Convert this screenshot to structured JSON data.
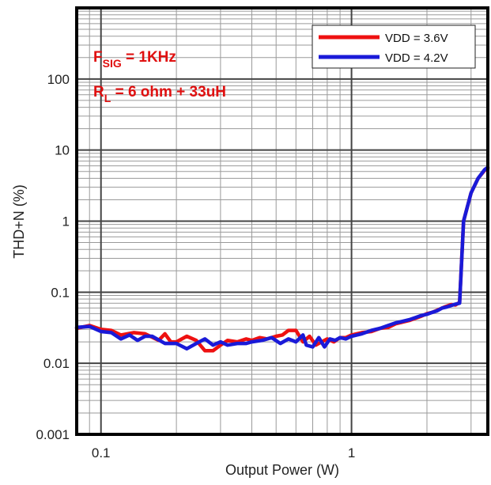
{
  "chart_data": {
    "type": "line",
    "title": "",
    "xlabel": "Output Power (W)",
    "ylabel": "THD+N (%)",
    "x_scale": "log",
    "y_scale": "log",
    "xlim": [
      0.08,
      3.5
    ],
    "ylim": [
      0.001,
      1000
    ],
    "x_tick_labels": [
      "0.1",
      "1"
    ],
    "y_tick_labels": [
      "0.001",
      "0.01",
      "0.1",
      "1",
      "10",
      "100"
    ],
    "grid": true,
    "legend_position": "top-right",
    "annotations": [
      {
        "main": "F",
        "sub": "SIG",
        "rest": " = 1KHz"
      },
      {
        "main": "R",
        "sub": "L",
        "rest": " = 6 ohm + 33uH"
      }
    ],
    "series": [
      {
        "name": "VDD = 3.6V",
        "color": "#ee1111",
        "x": [
          0.08,
          0.09,
          0.1,
          0.11,
          0.12,
          0.135,
          0.15,
          0.17,
          0.18,
          0.19,
          0.2,
          0.22,
          0.24,
          0.26,
          0.28,
          0.3,
          0.32,
          0.35,
          0.38,
          0.4,
          0.43,
          0.46,
          0.5,
          0.53,
          0.56,
          0.6,
          0.64,
          0.68,
          0.72,
          0.76,
          0.8,
          0.85,
          0.9,
          0.95,
          1.0,
          1.1,
          1.2,
          1.3,
          1.4,
          1.5,
          1.6,
          1.7,
          1.8,
          1.9,
          2.0,
          2.1,
          2.2,
          2.35,
          2.5,
          2.6,
          2.7,
          2.8,
          3.0,
          3.2,
          3.4,
          3.5
        ],
        "y": [
          0.031,
          0.034,
          0.03,
          0.029,
          0.025,
          0.027,
          0.026,
          0.021,
          0.026,
          0.02,
          0.02,
          0.024,
          0.021,
          0.015,
          0.015,
          0.018,
          0.021,
          0.02,
          0.022,
          0.021,
          0.023,
          0.022,
          0.024,
          0.025,
          0.029,
          0.029,
          0.02,
          0.024,
          0.018,
          0.02,
          0.022,
          0.02,
          0.023,
          0.023,
          0.025,
          0.027,
          0.028,
          0.031,
          0.032,
          0.036,
          0.038,
          0.04,
          0.043,
          0.046,
          0.05,
          0.052,
          0.056,
          0.062,
          0.067,
          0.066,
          0.072,
          1.0,
          2.5,
          4.0,
          5.2,
          5.5
        ]
      },
      {
        "name": "VDD = 4.2V",
        "color": "#1a1ad8",
        "x": [
          0.08,
          0.09,
          0.1,
          0.11,
          0.12,
          0.13,
          0.14,
          0.15,
          0.16,
          0.18,
          0.2,
          0.22,
          0.24,
          0.26,
          0.28,
          0.3,
          0.32,
          0.35,
          0.38,
          0.4,
          0.44,
          0.48,
          0.52,
          0.56,
          0.6,
          0.64,
          0.66,
          0.7,
          0.74,
          0.78,
          0.82,
          0.86,
          0.9,
          0.95,
          1.0,
          1.05,
          1.1,
          1.2,
          1.3,
          1.4,
          1.5,
          1.6,
          1.7,
          1.8,
          1.9,
          2.0,
          2.1,
          2.2,
          2.3,
          2.4,
          2.5,
          2.6,
          2.7,
          2.8,
          3.0,
          3.2,
          3.4,
          3.5
        ],
        "y": [
          0.032,
          0.033,
          0.028,
          0.027,
          0.022,
          0.025,
          0.021,
          0.024,
          0.024,
          0.019,
          0.019,
          0.016,
          0.019,
          0.022,
          0.018,
          0.02,
          0.018,
          0.019,
          0.019,
          0.02,
          0.021,
          0.023,
          0.019,
          0.022,
          0.02,
          0.025,
          0.018,
          0.017,
          0.023,
          0.017,
          0.022,
          0.021,
          0.023,
          0.022,
          0.024,
          0.025,
          0.026,
          0.029,
          0.031,
          0.034,
          0.037,
          0.039,
          0.041,
          0.044,
          0.047,
          0.049,
          0.052,
          0.055,
          0.06,
          0.062,
          0.065,
          0.068,
          0.07,
          1.0,
          2.5,
          4.0,
          5.3,
          5.7
        ]
      }
    ]
  }
}
